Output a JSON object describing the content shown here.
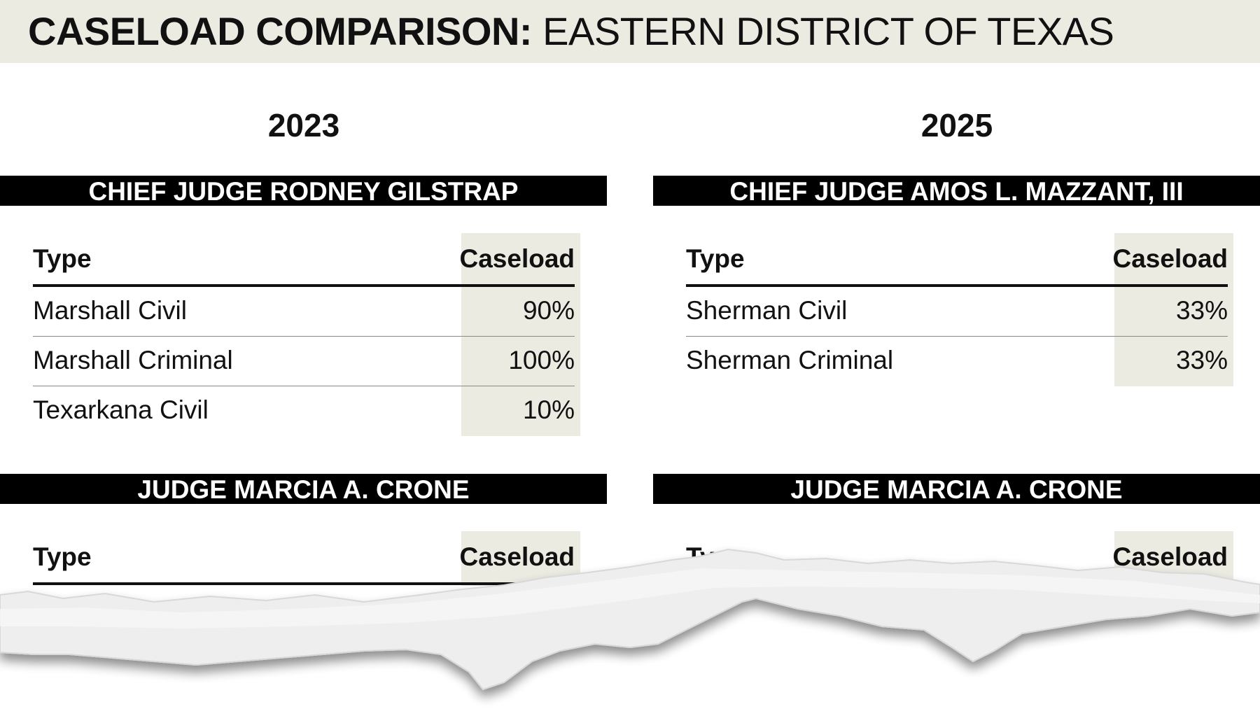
{
  "header": {
    "title_bold": "CASELOAD COMPARISON:",
    "title_rest": "EASTERN DISTRICT OF TEXAS"
  },
  "columns": [
    {
      "year": "2023",
      "sections": [
        {
          "judge": "CHIEF JUDGE RODNEY GILSTRAP",
          "table": {
            "headers": [
              "Type",
              "Caseload"
            ],
            "rows": [
              [
                "Marshall Civil",
                "90%"
              ],
              [
                "Marshall Criminal",
                "100%"
              ],
              [
                "Texarkana Civil",
                "10%"
              ]
            ]
          }
        },
        {
          "judge": "JUDGE MARCIA A. CRONE",
          "table": {
            "headers": [
              "Type",
              "Caseload"
            ],
            "rows": []
          }
        }
      ]
    },
    {
      "year": "2025",
      "sections": [
        {
          "judge": "CHIEF JUDGE AMOS L. MAZZANT, III",
          "table": {
            "headers": [
              "Type",
              "Caseload"
            ],
            "rows": [
              [
                "Sherman Civil",
                "33%"
              ],
              [
                "Sherman Criminal",
                "33%"
              ]
            ]
          }
        },
        {
          "judge": "JUDGE MARCIA A. CRONE",
          "table": {
            "headers": [
              "Type",
              "Caseload"
            ],
            "rows": []
          }
        }
      ]
    }
  ]
}
